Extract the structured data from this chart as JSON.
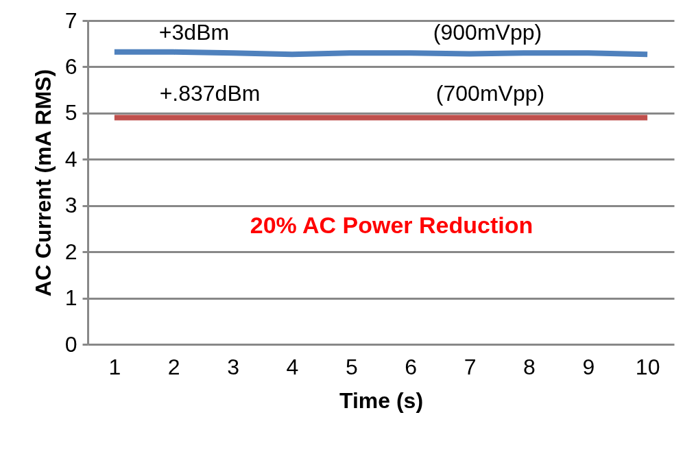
{
  "chart_data": {
    "type": "line",
    "xlabel": "Time (s)",
    "ylabel": "AC Current (mA RMS)",
    "categories": [
      "1",
      "2",
      "3",
      "4",
      "5",
      "6",
      "7",
      "8",
      "9",
      "10"
    ],
    "series": [
      {
        "color": "#4f81bd",
        "values": [
          6.32,
          6.32,
          6.3,
          6.27,
          6.3,
          6.3,
          6.28,
          6.3,
          6.3,
          6.27
        ]
      },
      {
        "color": "#c0504d",
        "values": [
          4.9,
          4.9,
          4.9,
          4.9,
          4.9,
          4.9,
          4.9,
          4.9,
          4.9,
          4.9
        ]
      }
    ],
    "ylim": [
      0,
      7
    ],
    "yticks": [
      0,
      1,
      2,
      3,
      4,
      5,
      6,
      7
    ],
    "grid": "y",
    "legend": false,
    "marker": "none",
    "annotations": [
      "+3dBm",
      "(900mVpp)",
      "+.837dBm",
      "(700mVpp)",
      "20% AC Power Reduction"
    ]
  }
}
